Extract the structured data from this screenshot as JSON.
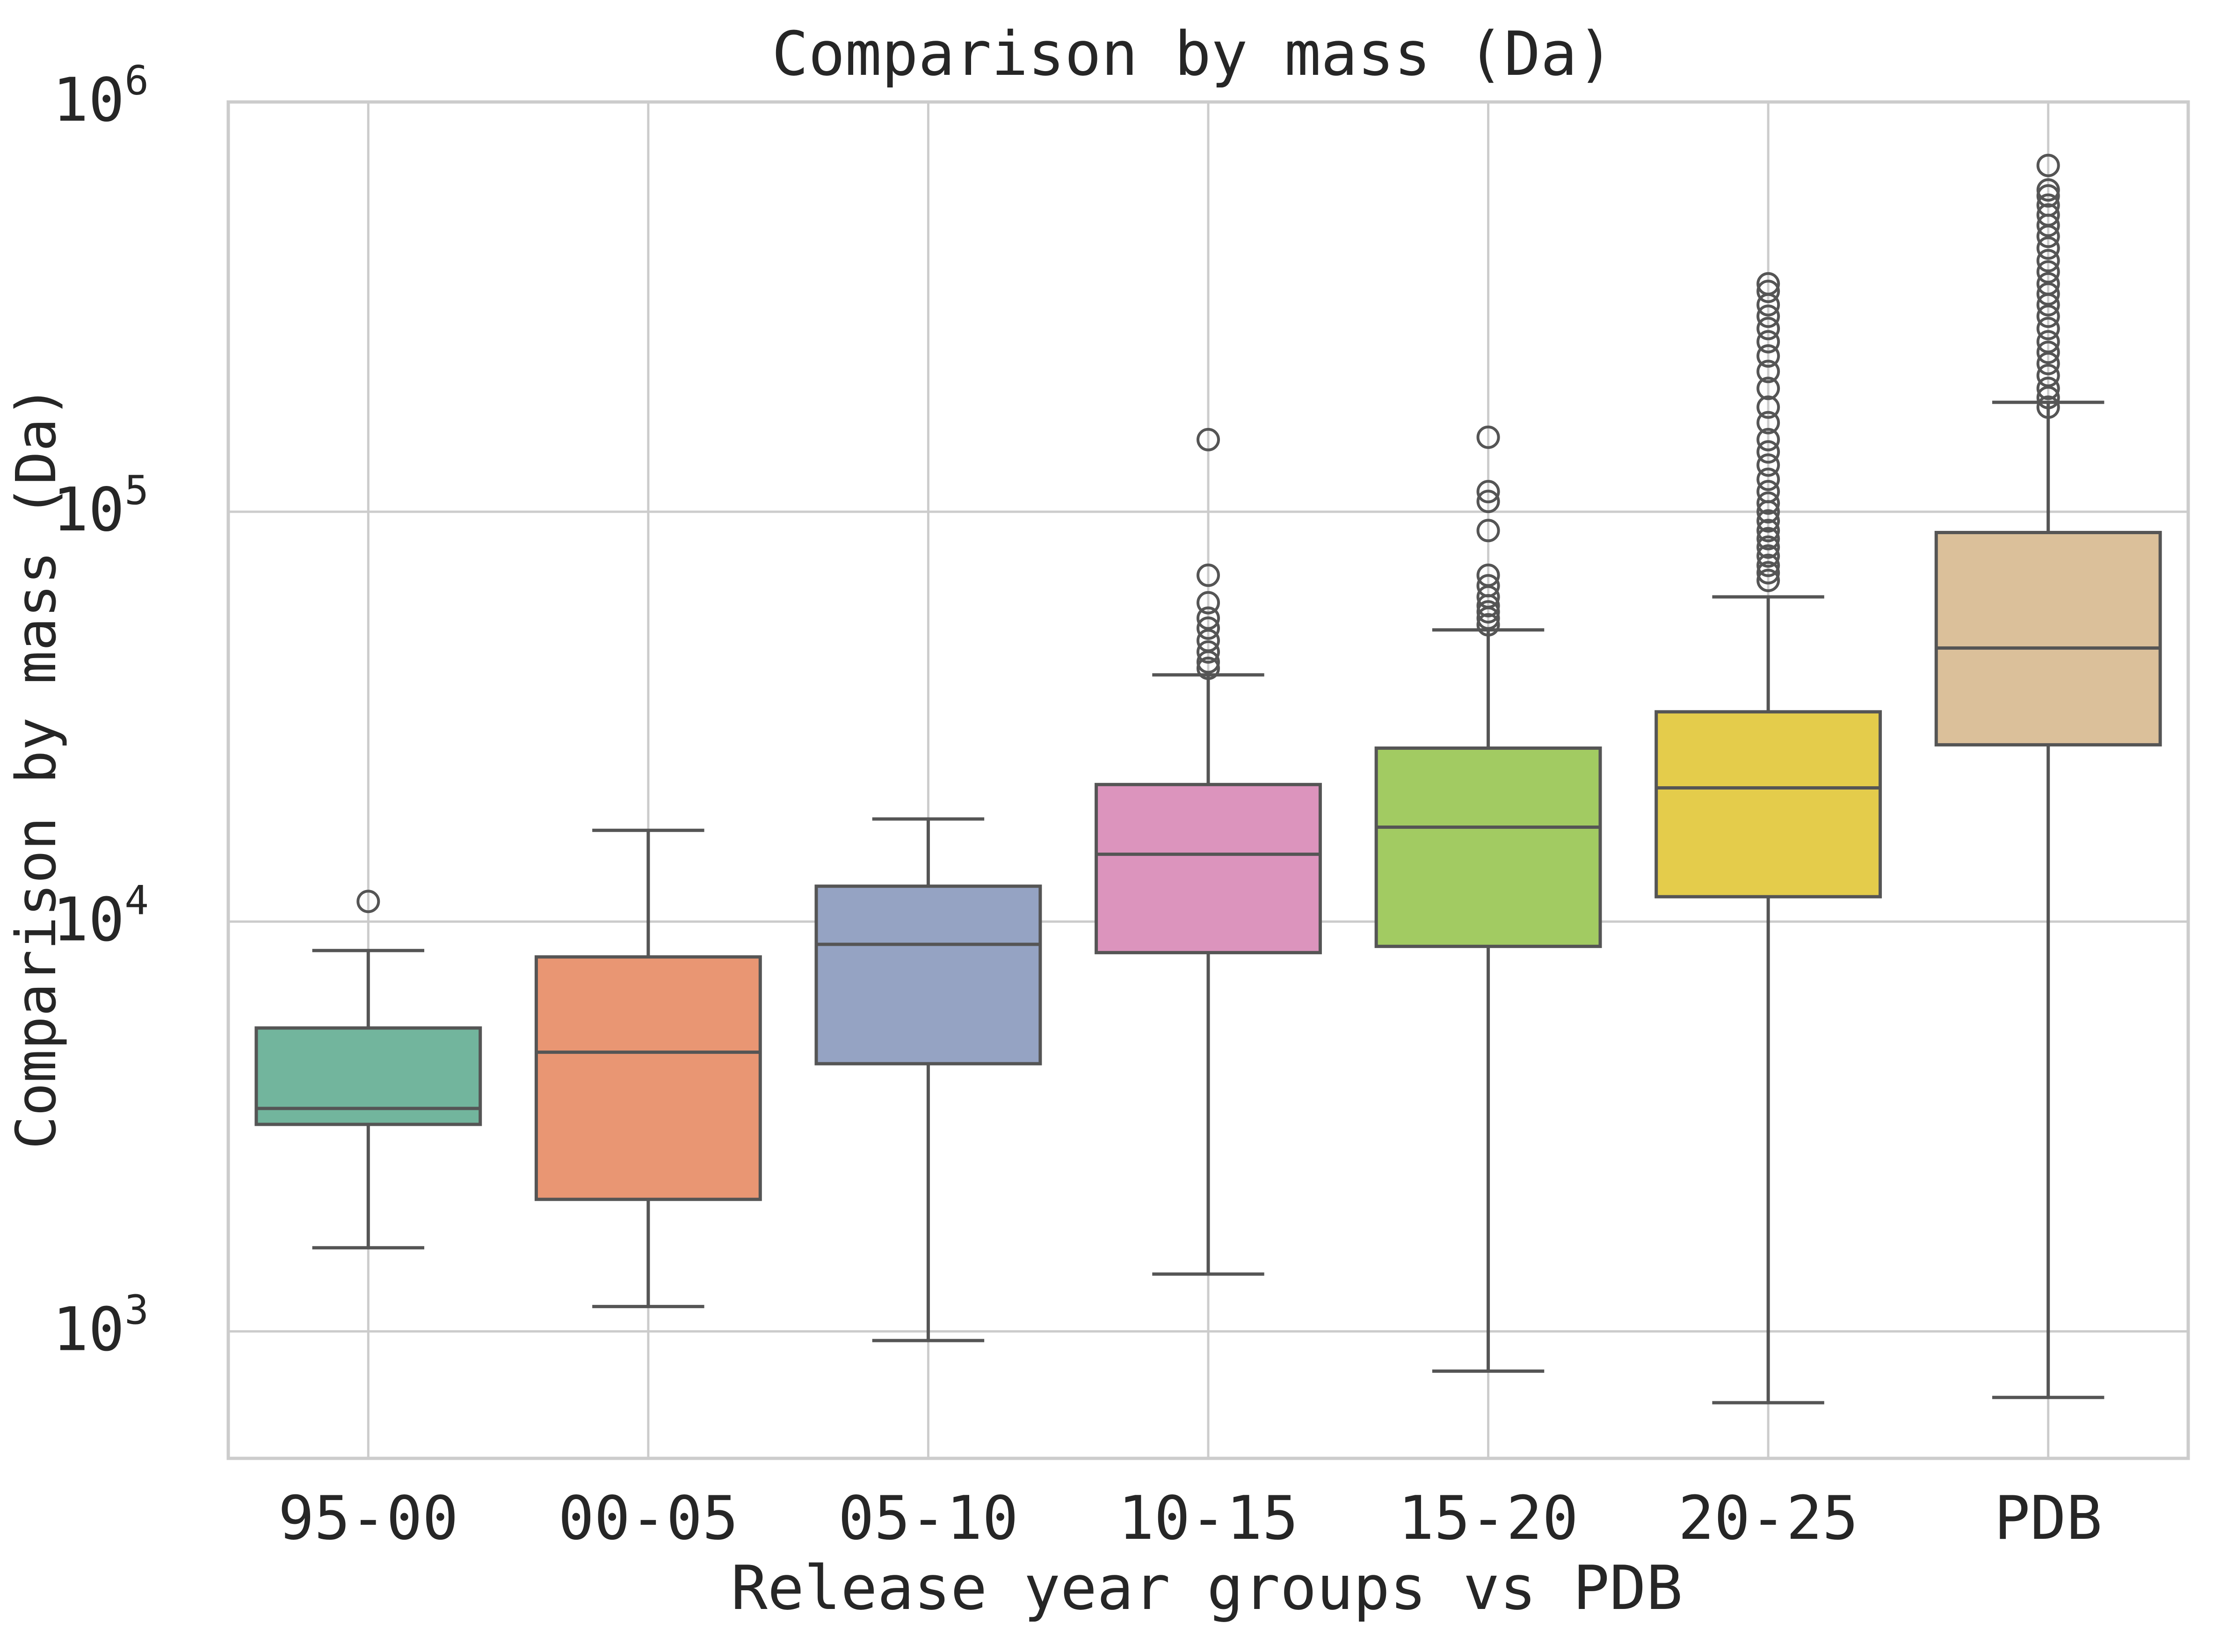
{
  "chart_data": {
    "type": "box",
    "title": "Comparison by mass (Da)",
    "xlabel": "Release year groups vs PDB",
    "ylabel": "Comparison by mass (Da)",
    "yscale": "log",
    "ylim": [
      490,
      1000000
    ],
    "yticks": [
      {
        "value": 1000,
        "base": "10",
        "exp": "3"
      },
      {
        "value": 10000,
        "base": "10",
        "exp": "4"
      },
      {
        "value": 100000,
        "base": "10",
        "exp": "5"
      },
      {
        "value": 1000000,
        "base": "10",
        "exp": "6"
      }
    ],
    "grid": true,
    "legend": "none",
    "categories": [
      "95-00",
      "00-05",
      "05-10",
      "10-15",
      "15-20",
      "20-25",
      "PDB"
    ],
    "boxes": [
      {
        "category": "95-00",
        "color": "#72b59d",
        "whisker_low": 1600,
        "q1": 3200,
        "median": 3500,
        "q3": 5500,
        "whisker_high": 8500,
        "outliers": [
          11200
        ]
      },
      {
        "category": "00-05",
        "color": "#e99673",
        "whisker_low": 1150,
        "q1": 2100,
        "median": 4800,
        "q3": 8200,
        "whisker_high": 16700,
        "outliers": []
      },
      {
        "category": "05-10",
        "color": "#95a3c3",
        "whisker_low": 950,
        "q1": 4500,
        "median": 8800,
        "q3": 12200,
        "whisker_high": 17800,
        "outliers": []
      },
      {
        "category": "10-15",
        "color": "#dc94bd",
        "whisker_low": 1380,
        "q1": 8400,
        "median": 14600,
        "q3": 21600,
        "whisker_high": 40000,
        "outliers": [
          41500,
          43000,
          45500,
          48500,
          52000,
          55000,
          60000,
          70000,
          150000
        ]
      },
      {
        "category": "15-20",
        "color": "#a2cb62",
        "whisker_low": 800,
        "q1": 8700,
        "median": 17000,
        "q3": 26500,
        "whisker_high": 51500,
        "outliers": [
          53000,
          55000,
          57000,
          59000,
          62000,
          66000,
          70000,
          90000,
          106000,
          112000,
          152000
        ]
      },
      {
        "category": "20-25",
        "color": "#e4cc4b",
        "whisker_low": 670,
        "q1": 11500,
        "median": 21200,
        "q3": 32500,
        "whisker_high": 62000,
        "outliers": [
          68000,
          71000,
          74000,
          78000,
          82000,
          86000,
          90000,
          95000,
          100000,
          105000,
          112000,
          120000,
          130000,
          140000,
          150000,
          165000,
          180000,
          200000,
          220000,
          240000,
          260000,
          280000,
          300000,
          320000,
          345000,
          360000
        ]
      },
      {
        "category": "PDB",
        "color": "#dbc09a",
        "whisker_low": 690,
        "q1": 27000,
        "median": 46500,
        "q3": 89000,
        "whisker_high": 185000,
        "outliers": [
          180000,
          190000,
          200000,
          215000,
          230000,
          245000,
          260000,
          280000,
          300000,
          320000,
          340000,
          360000,
          385000,
          410000,
          440000,
          470000,
          500000,
          530000,
          560000,
          590000,
          610000,
          700000
        ]
      }
    ]
  },
  "colors": {
    "axis": "#cccccc",
    "grid": "#cccccc",
    "line": "#555555",
    "text": "#262626"
  }
}
